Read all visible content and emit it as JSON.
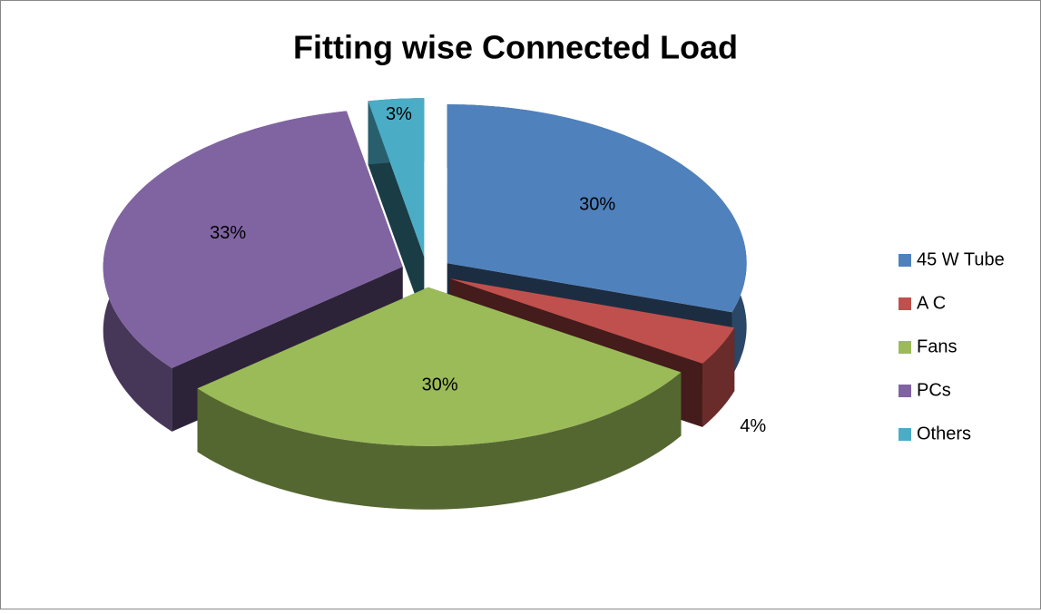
{
  "chart_data": {
    "type": "pie",
    "title": "Fitting wise Connected Load",
    "categories": [
      "45 W Tube",
      "A C",
      "Fans",
      "PCs",
      "Others"
    ],
    "values": [
      30,
      4,
      30,
      33,
      3
    ],
    "value_labels": [
      "30%",
      "4%",
      "30%",
      "33%",
      "3%"
    ],
    "colors": [
      "#4f81bd",
      "#c0504d",
      "#9bbb59",
      "#8064a2",
      "#4bacc6"
    ],
    "legend": "right"
  }
}
